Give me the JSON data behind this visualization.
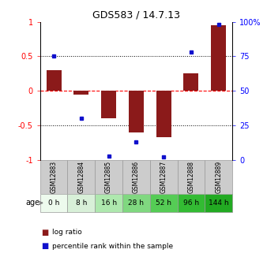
{
  "title": "GDS583 / 14.7.13",
  "samples": [
    "GSM12883",
    "GSM12884",
    "GSM12885",
    "GSM12886",
    "GSM12887",
    "GSM12888",
    "GSM12889"
  ],
  "ages": [
    "0 h",
    "8 h",
    "16 h",
    "28 h",
    "52 h",
    "96 h",
    "144 h"
  ],
  "log_ratio": [
    0.3,
    -0.05,
    -0.4,
    -0.6,
    -0.67,
    0.25,
    0.95
  ],
  "percentile_rank": [
    75,
    30,
    3,
    13,
    2,
    78,
    98
  ],
  "bar_color": "#8B1A1A",
  "dot_color": "#1010CC",
  "ylim_left": [
    -1,
    1
  ],
  "ylim_right": [
    0,
    100
  ],
  "yticks_left": [
    -1,
    -0.5,
    0,
    0.5,
    1
  ],
  "ytick_labels_left": [
    "-1",
    "-0.5",
    "0",
    "0.5",
    "1"
  ],
  "yticks_right": [
    0,
    25,
    50,
    75,
    100
  ],
  "ytick_labels_right": [
    "0",
    "25",
    "50",
    "75",
    "100%"
  ],
  "hlines_y": [
    0.5,
    0,
    -0.5
  ],
  "hline_colors": [
    "black",
    "red",
    "black"
  ],
  "hline_styles": [
    "dotted",
    "dashed",
    "dotted"
  ],
  "age_colors": [
    "#edfaed",
    "#d8f0d8",
    "#aee8ae",
    "#80d880",
    "#55cc55",
    "#33bb33",
    "#22aa22"
  ],
  "sample_bg": "#cccccc",
  "legend_log_ratio": "log ratio",
  "legend_percentile": "percentile rank within the sample"
}
